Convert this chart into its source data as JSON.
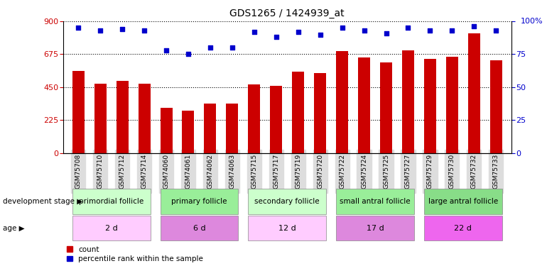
{
  "title": "GDS1265 / 1424939_at",
  "samples": [
    "GSM75708",
    "GSM75710",
    "GSM75712",
    "GSM75714",
    "GSM74060",
    "GSM74061",
    "GSM74062",
    "GSM74063",
    "GSM75715",
    "GSM75717",
    "GSM75719",
    "GSM75720",
    "GSM75722",
    "GSM75724",
    "GSM75725",
    "GSM75727",
    "GSM75729",
    "GSM75730",
    "GSM75732",
    "GSM75733"
  ],
  "counts": [
    560,
    475,
    495,
    475,
    310,
    290,
    340,
    340,
    470,
    460,
    555,
    545,
    695,
    655,
    620,
    700,
    645,
    660,
    820,
    635
  ],
  "percentiles": [
    95,
    93,
    94,
    93,
    78,
    75,
    80,
    80,
    92,
    88,
    92,
    90,
    95,
    93,
    91,
    95,
    93,
    93,
    96,
    93
  ],
  "bar_color": "#cc0000",
  "dot_color": "#0000cc",
  "ylim_left": [
    0,
    900
  ],
  "ylim_right": [
    0,
    100
  ],
  "yticks_left": [
    0,
    225,
    450,
    675,
    900
  ],
  "yticks_right": [
    0,
    25,
    50,
    75,
    100
  ],
  "groups": [
    {
      "label": "primordial follicle",
      "age": "2 d",
      "start": 0,
      "end": 4
    },
    {
      "label": "primary follicle",
      "age": "6 d",
      "start": 4,
      "end": 8
    },
    {
      "label": "secondary follicle",
      "age": "12 d",
      "start": 8,
      "end": 12
    },
    {
      "label": "small antral follicle",
      "age": "17 d",
      "start": 12,
      "end": 16
    },
    {
      "label": "large antral follicle",
      "age": "22 d",
      "start": 16,
      "end": 20
    }
  ],
  "stage_colors": [
    "#ccffcc",
    "#99ee99",
    "#ccffcc",
    "#99ee99",
    "#88dd88"
  ],
  "age_colors": [
    "#ffccff",
    "#dd88dd",
    "#ffccff",
    "#dd88dd",
    "#ee66ee"
  ],
  "row_label_stage": "development stage",
  "row_label_age": "age",
  "legend_count": "count",
  "legend_pct": "percentile rank within the sample",
  "background": "#ffffff",
  "grid_color": "#000000",
  "xticklabel_bg": "#dddddd"
}
